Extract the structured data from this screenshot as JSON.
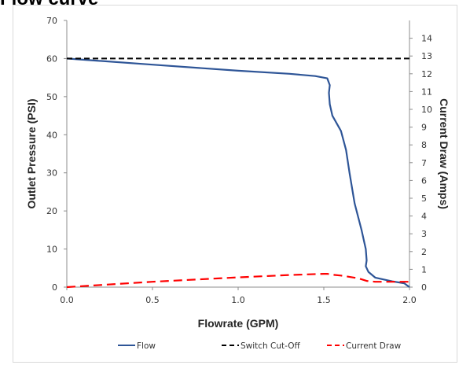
{
  "page_title": "Flow curve",
  "chart_data": {
    "type": "line",
    "xlabel": "Flowrate (GPM)",
    "ylabel": "Outlet Pressure (PSI)",
    "y2label": "Current Draw (Amps)",
    "xlim": [
      0,
      2.0
    ],
    "ylim": [
      0,
      70
    ],
    "y2lim": [
      0,
      15
    ],
    "x_ticks": [
      "0.0",
      "0.5",
      "1.0",
      "1.5",
      "2.0"
    ],
    "y_ticks": [
      "0",
      "10",
      "20",
      "30",
      "40",
      "50",
      "60",
      "70"
    ],
    "y2_ticks": [
      "0",
      "1",
      "2",
      "3",
      "4",
      "5",
      "6",
      "7",
      "8",
      "9",
      "10",
      "11",
      "12",
      "13",
      "14"
    ],
    "grid": false,
    "legend_position": "bottom",
    "series": [
      {
        "name": "Flow",
        "axis": "left",
        "color": "#2e5597",
        "dash": "solid",
        "x": [
          0.0,
          0.5,
          1.0,
          1.3,
          1.45,
          1.52,
          1.535,
          1.53,
          1.535,
          1.55,
          1.6,
          1.63,
          1.65,
          1.68,
          1.72,
          1.745,
          1.75,
          1.745,
          1.76,
          1.8,
          1.9,
          1.97,
          2.0
        ],
        "y": [
          60,
          58.4,
          56.8,
          56,
          55.4,
          54.8,
          53,
          51,
          48,
          45,
          41,
          36,
          30,
          22,
          15,
          10,
          7,
          5.5,
          4,
          2.5,
          1.5,
          1,
          0
        ]
      },
      {
        "name": "Switch Cut-Off",
        "axis": "left",
        "color": "#000000",
        "dash": "dashed",
        "x": [
          0.0,
          2.0
        ],
        "y": [
          60,
          60
        ]
      },
      {
        "name": "Current Draw",
        "axis": "right",
        "color": "#ff0000",
        "dash": "dashed",
        "x": [
          0.0,
          0.5,
          1.0,
          1.3,
          1.5,
          1.52,
          1.55,
          1.6,
          1.7,
          1.75,
          1.8,
          1.9,
          2.0
        ],
        "y": [
          0,
          0.3,
          0.55,
          0.68,
          0.75,
          0.75,
          0.7,
          0.65,
          0.5,
          0.35,
          0.3,
          0.3,
          0.3
        ]
      }
    ]
  }
}
